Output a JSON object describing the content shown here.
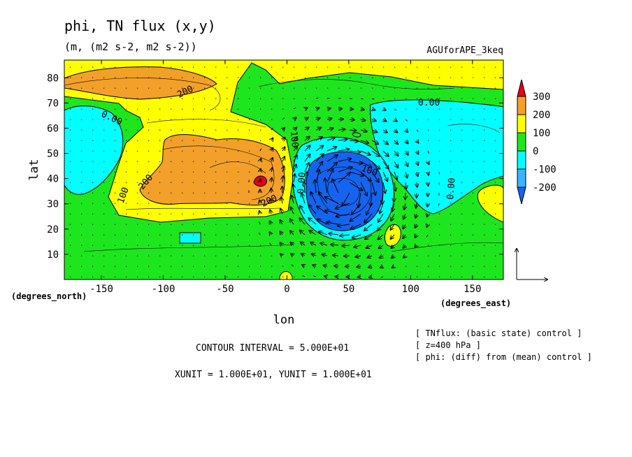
{
  "chart_data": {
    "type": "heatmap",
    "title": "phi, TN flux (x,y)",
    "subtitle": "(m, (m2 s-2, m2 s-2))",
    "run_label": "AGUforAPE_3keq",
    "xlabel": "lon",
    "ylabel": "lat",
    "x_unit_label": "(degrees_east)",
    "y_unit_label": "(degrees_north)",
    "xlim": [
      -180,
      175
    ],
    "ylim": [
      0,
      87
    ],
    "x_ticks": [
      "-150",
      "-100",
      "-50",
      "0",
      "50",
      "100",
      "150"
    ],
    "y_ticks": [
      "10",
      "20",
      "30",
      "40",
      "50",
      "60",
      "70",
      "80"
    ],
    "colorbar": {
      "levels": [
        "300",
        "200",
        "100",
        "0",
        "-100",
        "-200"
      ],
      "colors": [
        "#e8001c",
        "#f2a02a",
        "#ffff00",
        "#1ee61e",
        "#00ffff",
        "#3cb4ff",
        "#1464f0"
      ]
    },
    "contour_labels": [
      "200",
      "0.00",
      "100",
      "200",
      "200",
      "100",
      "0.00",
      "100",
      "0.00",
      "0.00",
      "0.00",
      "100"
    ],
    "contour_interval": 50,
    "vector_units": {
      "x": 10,
      "y": 10
    },
    "fields": [
      {
        "id": "north-high-band",
        "level": 200,
        "lon": [
          -180,
          -90
        ],
        "lat": [
          72,
          85
        ]
      },
      {
        "id": "central-high",
        "level": 200,
        "lon": [
          -100,
          -5
        ],
        "lat": [
          30,
          58
        ]
      },
      {
        "id": "high-core",
        "level": 300,
        "lon": [
          -22,
          -20
        ],
        "lat": [
          39,
          41
        ]
      },
      {
        "id": "western-low",
        "level": -100,
        "lon": [
          -180,
          -125
        ],
        "lat": [
          38,
          67
        ]
      },
      {
        "id": "southern-low-patch",
        "level": -100,
        "lon": [
          -85,
          -70
        ],
        "lat": [
          14,
          18
        ]
      },
      {
        "id": "eastern-low",
        "level": -200,
        "lon": [
          25,
          75
        ],
        "lat": [
          20,
          50
        ]
      },
      {
        "id": "north-east-low",
        "level": -100,
        "lon": [
          65,
          175
        ],
        "lat": [
          32,
          70
        ]
      }
    ]
  },
  "footer": {
    "contour_interval_text": "CONTOUR INTERVAL = 5.000E+01",
    "unit_text": "XUNIT = 1.000E+01, YUNIT = 1.000E+01",
    "notes": [
      "[ TNflux: (basic state) control ]",
      "[ z=400 hPa ]",
      "[ phi: (diff) from (mean) control ]"
    ]
  }
}
